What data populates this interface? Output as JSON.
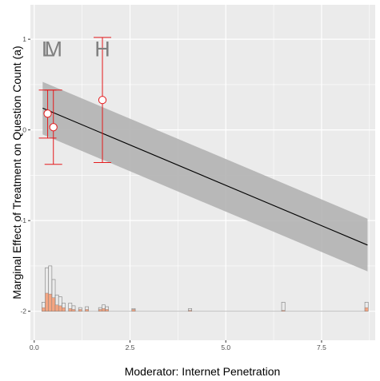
{
  "chart_data": {
    "type": "line",
    "title": "",
    "xlabel": "Moderator: Internet Penetration",
    "ylabel": "Marginal Effect of Treatment on Question Count (a)",
    "xlim": [
      -0.1,
      8.9
    ],
    "ylim": [
      -2.32,
      1.38
    ],
    "x_ticks": [
      0.0,
      2.5,
      5.0,
      7.5
    ],
    "x_tick_labels": [
      "0.0",
      "2.5",
      "5.0",
      "7.5"
    ],
    "y_ticks": [
      -2,
      -1,
      0,
      1
    ],
    "y_tick_labels": [
      "-2",
      "-1",
      "0",
      "1"
    ],
    "grid": true,
    "legend": "none",
    "colors": {
      "panel": "#ebebeb",
      "grid": "#ffffff",
      "line": "#000000",
      "band": "#b3b3b3",
      "estimate": "#e41a1c",
      "histogram_treated": "#f4a582",
      "histogram_outline": "#7f7f7f",
      "bin_label": "#808080"
    },
    "linear_fit": {
      "name": "marginal effect",
      "x": [
        0.22,
        8.7
      ],
      "y": [
        0.24,
        -1.27
      ]
    },
    "confidence_band": {
      "x": [
        0.22,
        8.7
      ],
      "lower": [
        -0.05,
        -1.56
      ],
      "upper": [
        0.53,
        -0.98
      ]
    },
    "binned_estimates": [
      {
        "label": "L",
        "x": 0.35,
        "y": 0.18,
        "ci": [
          -0.09,
          0.44
        ]
      },
      {
        "label": "M",
        "x": 0.5,
        "y": 0.03,
        "ci": [
          -0.38,
          0.44
        ]
      },
      {
        "label": "H",
        "x": 1.78,
        "y": 0.33,
        "ci": [
          -0.36,
          1.02
        ]
      }
    ],
    "histogram": {
      "baseline": -2.0,
      "bin_width": 0.087,
      "bins": [
        {
          "x": 0.2,
          "total": 0.1,
          "treated": 0.04
        },
        {
          "x": 0.287,
          "total": 0.48,
          "treated": 0.2
        },
        {
          "x": 0.374,
          "total": 0.5,
          "treated": 0.19
        },
        {
          "x": 0.461,
          "total": 0.35,
          "treated": 0.15
        },
        {
          "x": 0.548,
          "total": 0.18,
          "treated": 0.07
        },
        {
          "x": 0.635,
          "total": 0.16,
          "treated": 0.06
        },
        {
          "x": 0.722,
          "total": 0.09,
          "treated": 0.04
        },
        {
          "x": 0.896,
          "total": 0.09,
          "treated": 0.03
        },
        {
          "x": 0.983,
          "total": 0.06,
          "treated": 0.02
        },
        {
          "x": 1.157,
          "total": 0.04,
          "treated": 0.02
        },
        {
          "x": 1.331,
          "total": 0.05,
          "treated": 0.02
        },
        {
          "x": 1.679,
          "total": 0.04,
          "treated": 0.02
        },
        {
          "x": 1.766,
          "total": 0.07,
          "treated": 0.03
        },
        {
          "x": 1.853,
          "total": 0.05,
          "treated": 0.02
        },
        {
          "x": 2.549,
          "total": 0.03,
          "treated": 0.02
        },
        {
          "x": 4.025,
          "total": 0.03,
          "treated": 0.01
        },
        {
          "x": 6.458,
          "total": 0.1,
          "treated": 0.01
        },
        {
          "x": 8.63,
          "total": 0.1,
          "treated": 0.04
        }
      ]
    }
  }
}
